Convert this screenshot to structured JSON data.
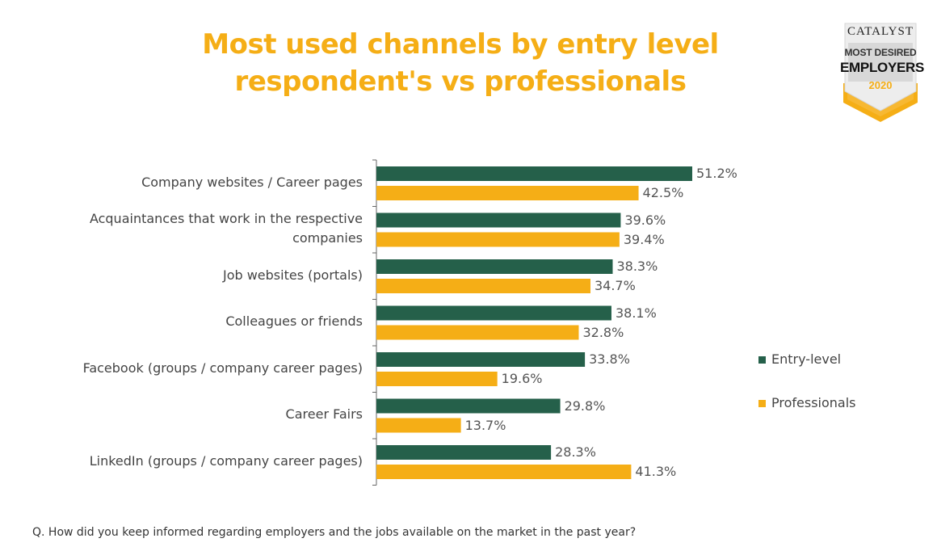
{
  "title_lines": [
    "Most used channels by entry level",
    "respondent's vs professionals"
  ],
  "badge": {
    "brand": "CATALYST",
    "line1": "MOST DESIRED",
    "line2": "EMPLOYERS",
    "year": "2020"
  },
  "question": "Q. How did you keep informed regarding employers and the jobs available on the market in the past year?",
  "colors": {
    "entry": "#25604a",
    "professional": "#f5ae16",
    "title": "#f5ae16"
  },
  "chart_data": {
    "type": "bar",
    "orientation": "horizontal",
    "title": "Most used channels by entry level respondent's vs professionals",
    "categories": [
      [
        "Company websites / Career pages"
      ],
      [
        "Acquaintances that work in the respective",
        "companies"
      ],
      [
        "Job websites (portals)"
      ],
      [
        "Colleagues or friends"
      ],
      [
        "Facebook (groups / company career pages)"
      ],
      [
        "Career Fairs"
      ],
      [
        "LinkedIn (groups / company career pages)"
      ]
    ],
    "series": [
      {
        "name": "Entry-level",
        "color": "#25604a",
        "values": [
          51.2,
          39.6,
          38.3,
          38.1,
          33.8,
          29.8,
          28.3
        ]
      },
      {
        "name": "Professionals",
        "color": "#f5ae16",
        "values": [
          42.5,
          39.4,
          34.7,
          32.8,
          19.6,
          13.7,
          41.3
        ]
      }
    ],
    "value_suffix": "%",
    "xlim": [
      0,
      51.2
    ],
    "grid": false,
    "legend_position": "right"
  }
}
